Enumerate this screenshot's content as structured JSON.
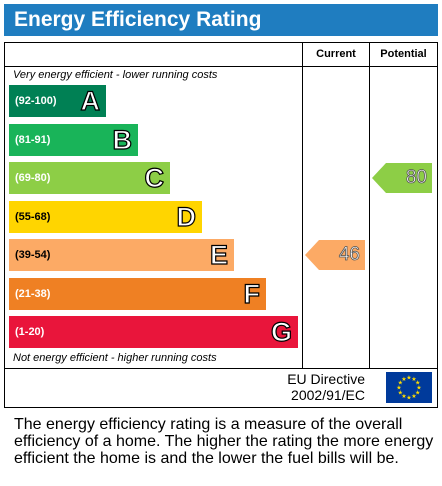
{
  "title": "Energy Efficiency Rating",
  "columns": {
    "current": "Current",
    "potential": "Potential"
  },
  "top_caption": "Very energy efficient - lower running costs",
  "bottom_caption": "Not energy efficient - higher running costs",
  "eu": {
    "line1": "EU Directive",
    "line2": "2002/91/EC"
  },
  "description": "The energy efficiency rating is a measure of the overall efficiency of a home. The higher the rating the more energy efficient the home is and the lower the fuel bills will be.",
  "chart_data": {
    "type": "bar",
    "categories": [
      "A",
      "B",
      "C",
      "D",
      "E",
      "F",
      "G"
    ],
    "ranges": [
      "(92-100)",
      "(81-91)",
      "(69-80)",
      "(55-68)",
      "(39-54)",
      "(21-38)",
      "(1-20)"
    ],
    "colors": [
      "#008054",
      "#19b459",
      "#8dce46",
      "#ffd500",
      "#fcaa65",
      "#ef8023",
      "#e9153b"
    ],
    "current": {
      "value": 46,
      "band": "E",
      "color": "#fcaa65"
    },
    "potential": {
      "value": 80,
      "band": "C",
      "color": "#8dce46"
    }
  }
}
